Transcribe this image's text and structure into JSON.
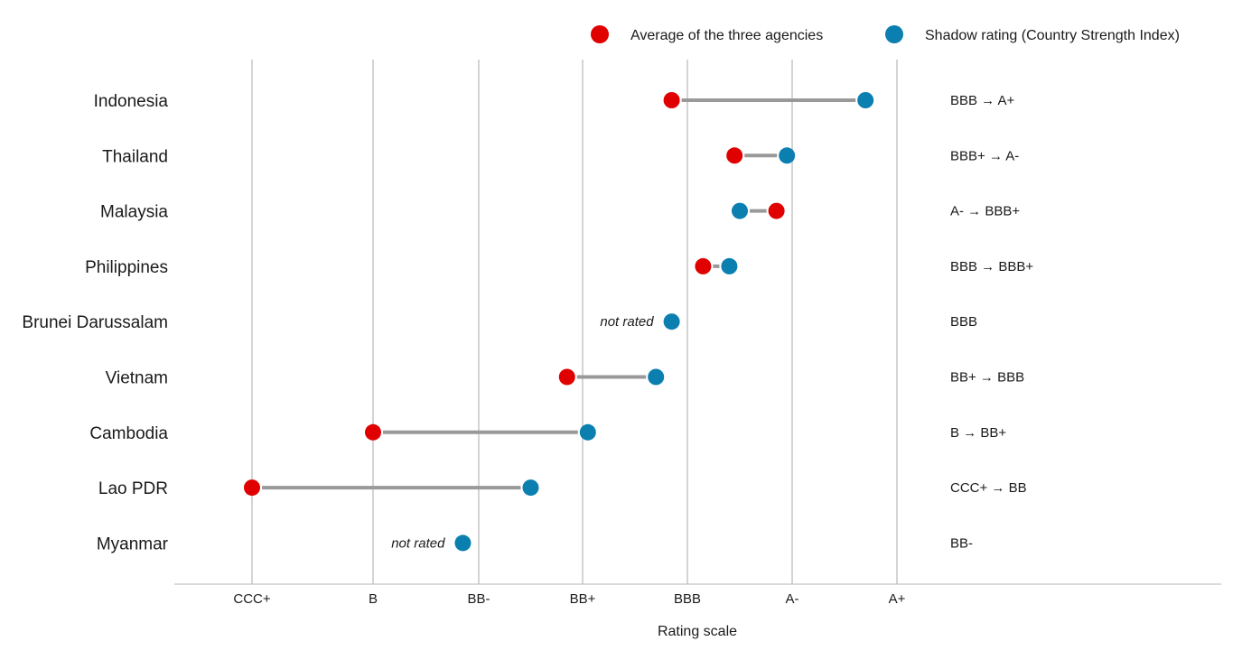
{
  "chart_data": {
    "type": "dumbbell",
    "xlabel": "Rating scale",
    "x_ticks": [
      "CCC+",
      "B",
      "BB-",
      "BB+",
      "BBB",
      "A-",
      "A+"
    ],
    "legend": {
      "placement": "top-right",
      "entries": [
        {
          "name": "Average of the three agencies",
          "color": "#e00000"
        },
        {
          "name": "Shadow rating (Country Strength Index)",
          "color": "#0a7fb0"
        }
      ]
    },
    "connector_color": "#999999",
    "gridlines": true,
    "not_rated_label": "not rated",
    "arrow": "→",
    "rows": [
      {
        "country": "Indonesia",
        "average": "BBB",
        "shadow": "A+",
        "average_value": 4.85,
        "shadow_value": 6.7
      },
      {
        "country": "Thailand",
        "average": "BBB+",
        "shadow": "A-",
        "average_value": 5.45,
        "shadow_value": 5.95
      },
      {
        "country": "Malaysia",
        "average": "A-",
        "shadow": "BBB+",
        "average_value": 5.85,
        "shadow_value": 5.5
      },
      {
        "country": "Philippines",
        "average": "BBB",
        "shadow": "BBB+",
        "average_value": 5.15,
        "shadow_value": 5.4
      },
      {
        "country": "Brunei Darussalam",
        "average": null,
        "shadow": "BBB",
        "average_value": null,
        "shadow_value": 4.85
      },
      {
        "country": "Vietnam",
        "average": "BB+",
        "shadow": "BBB",
        "average_value": 3.85,
        "shadow_value": 4.7
      },
      {
        "country": "Cambodia",
        "average": "B",
        "shadow": "BB+",
        "average_value": 2.0,
        "shadow_value": 4.05
      },
      {
        "country": "Lao PDR",
        "average": "CCC+",
        "shadow": "BB",
        "average_value": 0.0,
        "shadow_value": 3.5
      },
      {
        "country": "Myanmar",
        "average": null,
        "shadow": "BB-",
        "average_value": null,
        "shadow_value": 2.85
      }
    ]
  }
}
